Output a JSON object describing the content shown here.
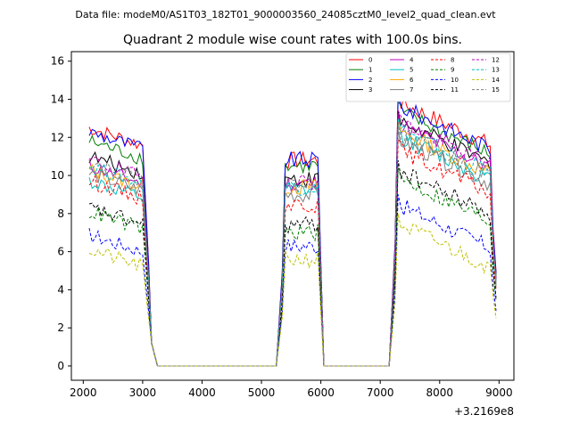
{
  "header": {
    "data_file_label": "Data file: modeM0/AS1T03_182T01_9000003560_24085cztM0_level2_quad_clean.evt"
  },
  "chart_data": {
    "type": "line",
    "title": "Quadrant 2 module wise count rates with 100.0s bins.",
    "xlabel": "",
    "ylabel": "",
    "x_offset_label": "+3.2169e8",
    "xlim": [
      1800,
      9250
    ],
    "ylim": [
      -0.75,
      16.5
    ],
    "xticks": [
      2000,
      3000,
      4000,
      5000,
      6000,
      7000,
      8000,
      9000
    ],
    "yticks": [
      0,
      2,
      4,
      6,
      8,
      10,
      12,
      14,
      16
    ],
    "legend_position": "top-right",
    "segments": [
      {
        "x_start": 2100,
        "x_end": 3000,
        "rise_x": 2100,
        "fall_end": 3250
      },
      {
        "x_start": 5400,
        "x_end": 5950,
        "rise_x": 5250,
        "fall_end": 6050
      },
      {
        "x_start": 7350,
        "x_end": 8850,
        "rise_x": 7150,
        "fall_end": 8950
      }
    ],
    "series": [
      {
        "name": "0",
        "color": "#ff0000",
        "dash": "solid",
        "levels": [
          12.0,
          10.8,
          13.0
        ]
      },
      {
        "name": "1",
        "color": "#008000",
        "dash": "solid",
        "levels": [
          11.3,
          10.5,
          12.5
        ]
      },
      {
        "name": "2",
        "color": "#0000ff",
        "dash": "solid",
        "levels": [
          11.8,
          10.8,
          12.8
        ]
      },
      {
        "name": "3",
        "color": "#000000",
        "dash": "solid",
        "levels": [
          10.5,
          9.8,
          12.0
        ]
      },
      {
        "name": "4",
        "color": "#bf00bf",
        "dash": "solid",
        "levels": [
          10.0,
          9.6,
          11.8
        ]
      },
      {
        "name": "5",
        "color": "#00bfbf",
        "dash": "solid",
        "levels": [
          9.2,
          9.2,
          11.2
        ]
      },
      {
        "name": "6",
        "color": "#ffa500",
        "dash": "solid",
        "levels": [
          9.8,
          9.4,
          11.5
        ]
      },
      {
        "name": "7",
        "color": "#808080",
        "dash": "solid",
        "levels": [
          9.6,
          9.0,
          11.0
        ]
      },
      {
        "name": "8",
        "color": "#ff0000",
        "dash": "dashed",
        "levels": [
          9.2,
          8.5,
          10.5
        ]
      },
      {
        "name": "9",
        "color": "#008000",
        "dash": "dashed",
        "levels": [
          7.6,
          7.0,
          9.0
        ]
      },
      {
        "name": "10",
        "color": "#0000ff",
        "dash": "dashed",
        "levels": [
          6.4,
          6.3,
          7.6
        ]
      },
      {
        "name": "11",
        "color": "#000000",
        "dash": "dashed",
        "levels": [
          7.8,
          7.4,
          9.4
        ]
      },
      {
        "name": "12",
        "color": "#bf00bf",
        "dash": "dashed",
        "levels": [
          10.3,
          9.7,
          12.0
        ]
      },
      {
        "name": "13",
        "color": "#00bfbf",
        "dash": "dashed",
        "levels": [
          10.0,
          9.4,
          11.6
        ]
      },
      {
        "name": "14",
        "color": "#bfbf00",
        "dash": "dashed",
        "levels": [
          5.6,
          5.6,
          6.6
        ]
      },
      {
        "name": "15",
        "color": "#808080",
        "dash": "dashed",
        "levels": [
          10.2,
          9.5,
          11.4
        ]
      }
    ]
  }
}
